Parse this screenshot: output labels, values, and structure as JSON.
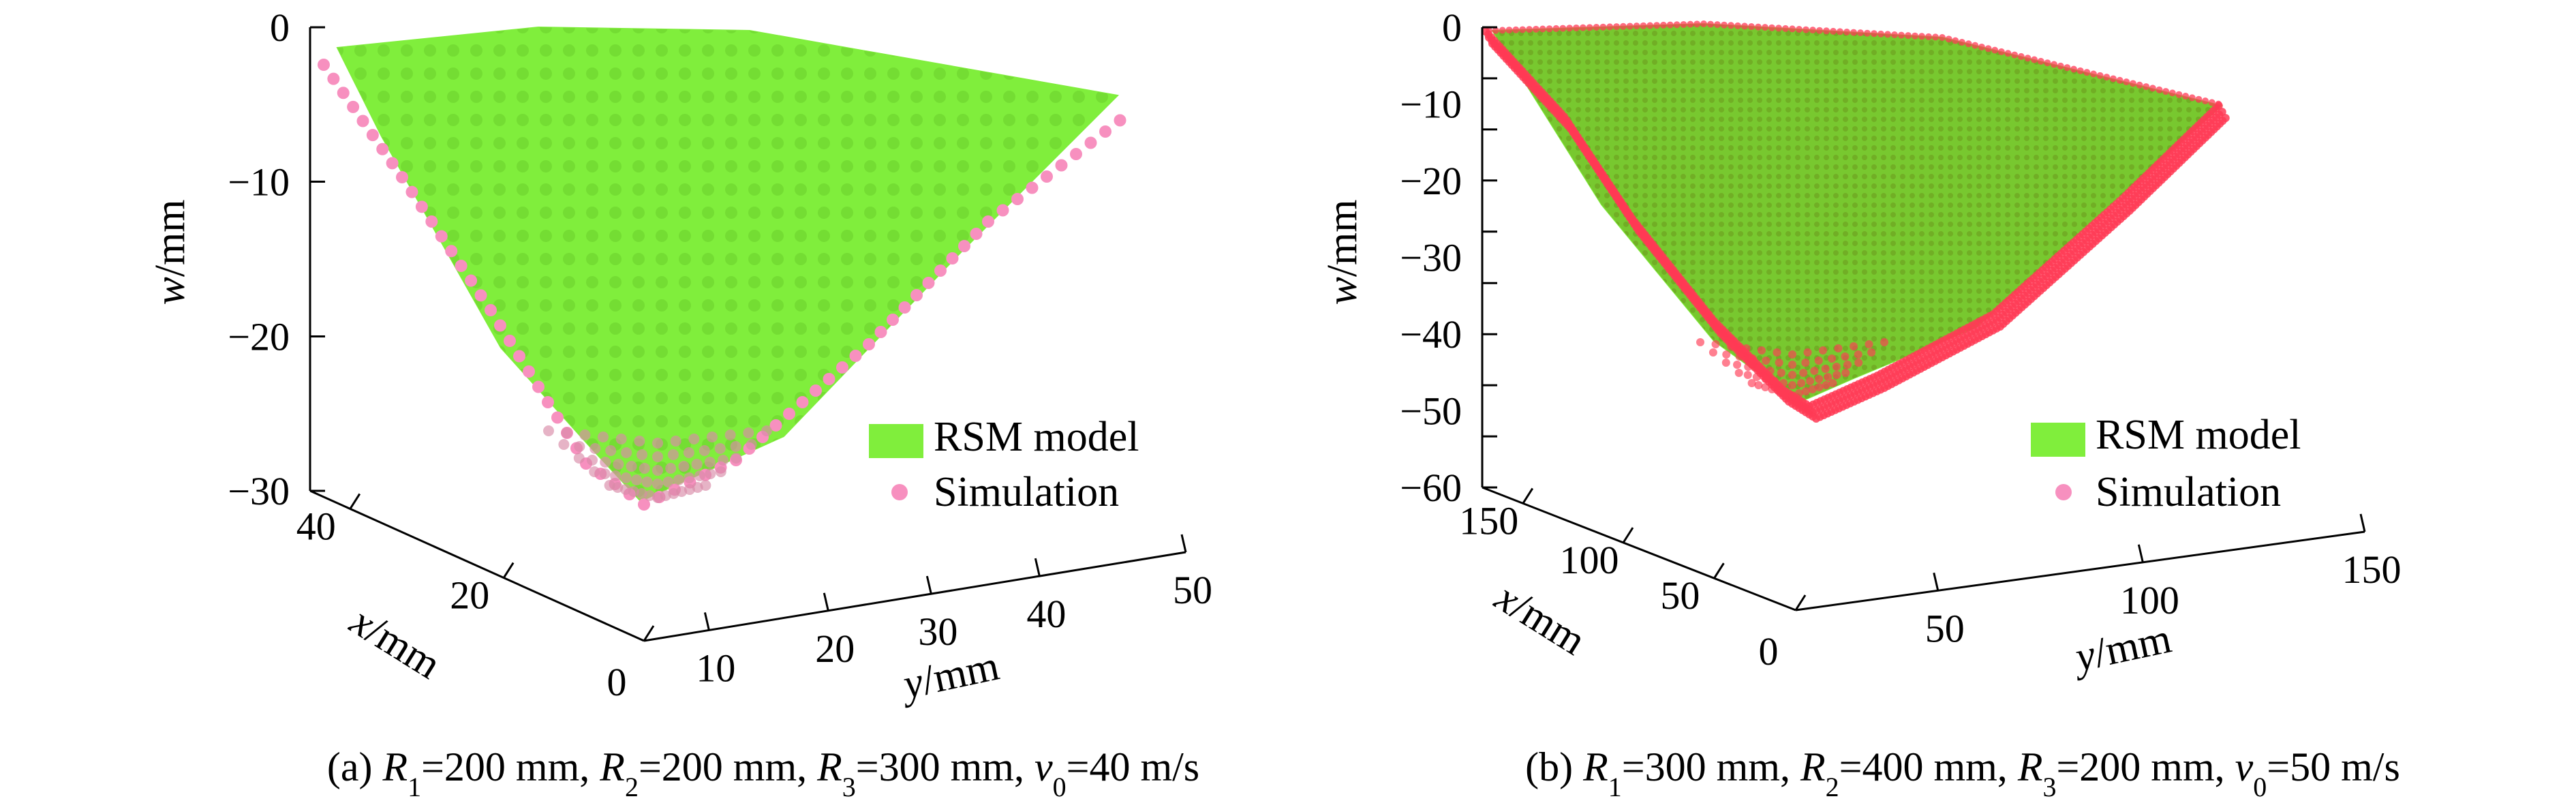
{
  "colors": {
    "surface": "#80ee3c",
    "surface_dark": "#6a9a1e",
    "simulation": "#f790bf",
    "simulation_dense": "#ff3a55",
    "axis": "#000000"
  },
  "chart_data": [
    {
      "type": "surface3d",
      "panel": "a",
      "caption_parts": [
        "(a) ",
        "R",
        "1",
        "=200 mm, ",
        "R",
        "2",
        "=200 mm, ",
        "R",
        "3",
        "=300 mm, ",
        "v",
        "0",
        "=40 m/s"
      ],
      "xlabel_parts": [
        "x",
        "/mm"
      ],
      "ylabel_parts": [
        "y",
        "/mm"
      ],
      "zlabel_parts": [
        "w",
        "/mm"
      ],
      "xlim": [
        0,
        50
      ],
      "ylim": [
        0,
        50
      ],
      "zlim": [
        -30,
        0
      ],
      "xticks": [
        "0",
        "20",
        "40"
      ],
      "yticks": [
        "10",
        "20",
        "30",
        "40",
        "50"
      ],
      "zticks": [
        "0",
        "−10",
        "−20",
        "−30"
      ],
      "legend": {
        "position": "lower-right"
      },
      "series": [
        {
          "name": "RSM model",
          "kind": "surface",
          "color": "#80ee3c"
        },
        {
          "name": "Simulation",
          "kind": "points",
          "color": "#f790bf"
        }
      ],
      "min_deflection": -30.5
    },
    {
      "type": "surface3d",
      "panel": "b",
      "caption_parts": [
        "(b) ",
        "R",
        "1",
        "=300 mm, ",
        "R",
        "2",
        "=400 mm, ",
        "R",
        "3",
        "=200 mm, ",
        "v",
        "0",
        "=50 m/s"
      ],
      "xlabel_parts": [
        "x",
        "/mm"
      ],
      "ylabel_parts": [
        "y",
        "/mm"
      ],
      "zlabel_parts": [
        "w",
        "/mm"
      ],
      "xlim": [
        0,
        150
      ],
      "ylim": [
        0,
        150
      ],
      "zlim": [
        -60,
        0
      ],
      "xticks": [
        "0",
        "50",
        "100",
        "150"
      ],
      "yticks": [
        "50",
        "100",
        "150"
      ],
      "zticks": [
        "0",
        "−10",
        "−20",
        "−30",
        "−40",
        "−50",
        "−60"
      ],
      "legend": {
        "position": "lower-right"
      },
      "series": [
        {
          "name": "RSM model",
          "kind": "surface",
          "color": "#80ee3c"
        },
        {
          "name": "Simulation",
          "kind": "points",
          "color": "#f790bf"
        }
      ],
      "min_deflection": -50.5
    }
  ]
}
